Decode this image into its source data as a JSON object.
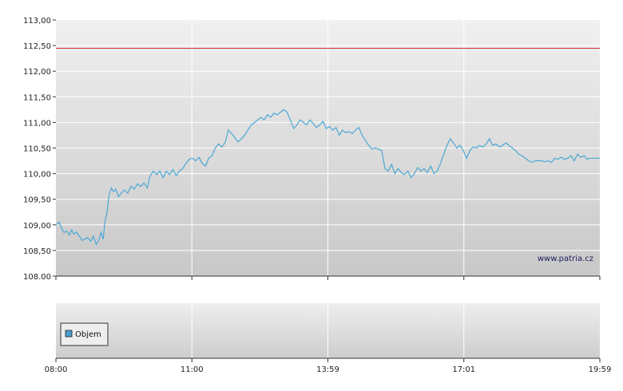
{
  "chart_data": {
    "type": "line",
    "y_ticks": [
      "113,00",
      "112,50",
      "112,00",
      "111,50",
      "111,00",
      "110,50",
      "110,00",
      "109,50",
      "109,00",
      "108,50",
      "108.00"
    ],
    "ylim": [
      108.0,
      113.0
    ],
    "x_ticks": [
      "08:00",
      "11:00",
      "13:59",
      "17:01",
      "19:59"
    ],
    "grid": true,
    "reference_line": {
      "value": 112.45,
      "color": "#d03030"
    },
    "watermark": "www.patria.cz",
    "legend": {
      "label": "Objem",
      "color": "#4a9ccf",
      "placement": "bottom-left of lower panel"
    },
    "colors": {
      "line": "#4aa8d4",
      "reference": "#d03030"
    },
    "series": [
      {
        "values": [
          [
            0.0,
            109.0
          ],
          [
            0.6,
            109.05
          ],
          [
            1.1,
            108.92
          ],
          [
            1.5,
            108.85
          ],
          [
            2.0,
            108.88
          ],
          [
            2.5,
            108.8
          ],
          [
            2.9,
            108.9
          ],
          [
            3.3,
            108.82
          ],
          [
            3.8,
            108.86
          ],
          [
            4.3,
            108.78
          ],
          [
            4.8,
            108.7
          ],
          [
            5.3,
            108.72
          ],
          [
            5.8,
            108.75
          ],
          [
            6.4,
            108.68
          ],
          [
            6.9,
            108.78
          ],
          [
            7.4,
            108.62
          ],
          [
            7.9,
            108.7
          ],
          [
            8.3,
            108.85
          ],
          [
            8.7,
            108.72
          ],
          [
            9.0,
            109.05
          ],
          [
            9.4,
            109.25
          ],
          [
            9.8,
            109.6
          ],
          [
            10.2,
            109.72
          ],
          [
            10.6,
            109.65
          ],
          [
            11.0,
            109.7
          ],
          [
            11.5,
            109.55
          ],
          [
            12.0,
            109.62
          ],
          [
            12.6,
            109.68
          ],
          [
            13.2,
            109.62
          ],
          [
            13.8,
            109.75
          ],
          [
            14.4,
            109.7
          ],
          [
            15.0,
            109.8
          ],
          [
            15.6,
            109.75
          ],
          [
            16.2,
            109.82
          ],
          [
            16.8,
            109.72
          ],
          [
            17.3,
            109.95
          ],
          [
            17.9,
            110.05
          ],
          [
            18.5,
            109.98
          ],
          [
            19.1,
            110.05
          ],
          [
            19.7,
            109.92
          ],
          [
            20.3,
            110.05
          ],
          [
            20.9,
            109.98
          ],
          [
            21.5,
            110.08
          ],
          [
            22.1,
            109.96
          ],
          [
            22.7,
            110.05
          ],
          [
            23.3,
            110.1
          ],
          [
            23.9,
            110.2
          ],
          [
            24.5,
            110.28
          ],
          [
            25.1,
            110.3
          ],
          [
            25.7,
            110.25
          ],
          [
            26.3,
            110.32
          ],
          [
            26.9,
            110.2
          ],
          [
            27.5,
            110.15
          ],
          [
            28.1,
            110.3
          ],
          [
            28.7,
            110.35
          ],
          [
            29.3,
            110.5
          ],
          [
            29.9,
            110.58
          ],
          [
            30.5,
            110.52
          ],
          [
            31.1,
            110.6
          ],
          [
            31.7,
            110.85
          ],
          [
            32.3,
            110.78
          ],
          [
            32.9,
            110.7
          ],
          [
            33.5,
            110.62
          ],
          [
            34.1,
            110.68
          ],
          [
            34.7,
            110.75
          ],
          [
            35.3,
            110.85
          ],
          [
            35.9,
            110.95
          ],
          [
            36.5,
            111.0
          ],
          [
            37.1,
            111.05
          ],
          [
            37.7,
            111.1
          ],
          [
            38.3,
            111.05
          ],
          [
            38.9,
            111.15
          ],
          [
            39.5,
            111.1
          ],
          [
            40.1,
            111.18
          ],
          [
            40.7,
            111.15
          ],
          [
            41.3,
            111.2
          ],
          [
            41.9,
            111.25
          ],
          [
            42.5,
            111.2
          ],
          [
            43.1,
            111.05
          ],
          [
            43.7,
            110.88
          ],
          [
            44.3,
            110.95
          ],
          [
            44.9,
            111.05
          ],
          [
            45.5,
            111.0
          ],
          [
            46.1,
            110.95
          ],
          [
            46.7,
            111.05
          ],
          [
            47.3,
            110.98
          ],
          [
            47.9,
            110.9
          ],
          [
            48.5,
            110.95
          ],
          [
            49.1,
            111.02
          ],
          [
            49.7,
            110.88
          ],
          [
            50.3,
            110.92
          ],
          [
            50.9,
            110.85
          ],
          [
            51.5,
            110.9
          ],
          [
            52.1,
            110.75
          ],
          [
            52.7,
            110.85
          ],
          [
            53.3,
            110.8
          ],
          [
            53.9,
            110.82
          ],
          [
            54.5,
            110.78
          ],
          [
            55.1,
            110.85
          ],
          [
            55.7,
            110.9
          ],
          [
            56.3,
            110.75
          ],
          [
            56.9,
            110.65
          ],
          [
            57.5,
            110.55
          ],
          [
            58.1,
            110.48
          ],
          [
            58.7,
            110.5
          ],
          [
            59.3,
            110.48
          ],
          [
            59.9,
            110.45
          ],
          [
            60.5,
            110.1
          ],
          [
            61.1,
            110.05
          ],
          [
            61.7,
            110.18
          ],
          [
            62.3,
            110.0
          ],
          [
            62.9,
            110.1
          ],
          [
            63.5,
            110.02
          ],
          [
            64.1,
            109.98
          ],
          [
            64.7,
            110.05
          ],
          [
            65.3,
            109.92
          ],
          [
            65.9,
            110.0
          ],
          [
            66.5,
            110.12
          ],
          [
            67.1,
            110.05
          ],
          [
            67.7,
            110.1
          ],
          [
            68.3,
            110.02
          ],
          [
            68.9,
            110.15
          ],
          [
            69.5,
            110.0
          ],
          [
            70.1,
            110.05
          ],
          [
            70.7,
            110.2
          ],
          [
            71.3,
            110.38
          ],
          [
            71.9,
            110.55
          ],
          [
            72.5,
            110.68
          ],
          [
            73.1,
            110.6
          ],
          [
            73.7,
            110.5
          ],
          [
            74.3,
            110.55
          ],
          [
            74.9,
            110.45
          ],
          [
            75.5,
            110.3
          ],
          [
            76.1,
            110.45
          ],
          [
            76.7,
            110.52
          ],
          [
            77.3,
            110.5
          ],
          [
            77.9,
            110.55
          ],
          [
            78.5,
            110.52
          ],
          [
            79.1,
            110.58
          ],
          [
            79.7,
            110.68
          ],
          [
            80.3,
            110.55
          ],
          [
            80.9,
            110.58
          ],
          [
            81.5,
            110.52
          ],
          [
            82.1,
            110.55
          ],
          [
            82.7,
            110.6
          ],
          [
            83.3,
            110.55
          ],
          [
            83.9,
            110.5
          ],
          [
            84.5,
            110.45
          ],
          [
            85.1,
            110.38
          ],
          [
            85.7,
            110.35
          ],
          [
            86.3,
            110.3
          ],
          [
            86.9,
            110.25
          ],
          [
            87.5,
            110.22
          ],
          [
            88.1,
            110.25
          ],
          [
            88.7,
            110.25
          ],
          [
            89.3,
            110.25
          ],
          [
            89.9,
            110.23
          ],
          [
            90.5,
            110.25
          ],
          [
            91.1,
            110.22
          ],
          [
            91.7,
            110.3
          ],
          [
            92.3,
            110.28
          ],
          [
            92.9,
            110.32
          ],
          [
            93.5,
            110.28
          ],
          [
            94.1,
            110.3
          ],
          [
            94.7,
            110.35
          ],
          [
            95.3,
            110.25
          ],
          [
            95.9,
            110.38
          ],
          [
            96.5,
            110.32
          ],
          [
            97.1,
            110.35
          ],
          [
            97.6,
            110.28
          ],
          [
            98.2,
            110.3
          ],
          [
            100.0,
            110.3
          ]
        ]
      }
    ]
  }
}
